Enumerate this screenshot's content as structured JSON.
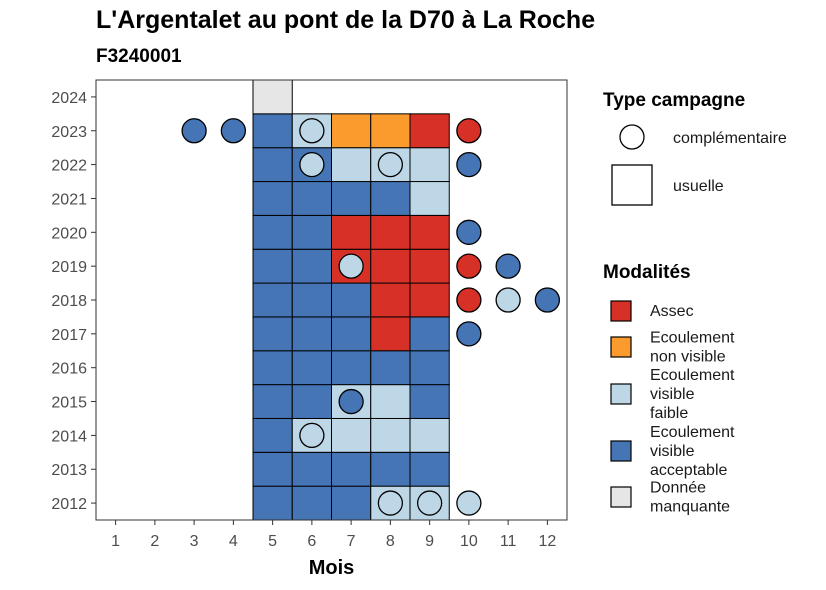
{
  "title": "L'Argentalet au pont de la D70 à La Roche",
  "subtitle": "F3240001",
  "chart_data": {
    "type": "heatmap",
    "title": "L'Argentalet au pont de la D70 à La Roche",
    "subtitle": "F3240001",
    "xlabel": "Mois",
    "ylabel": "",
    "x_ticks": [
      1,
      2,
      3,
      4,
      5,
      6,
      7,
      8,
      9,
      10,
      11,
      12
    ],
    "y_ticks": [
      2012,
      2013,
      2014,
      2015,
      2016,
      2017,
      2018,
      2019,
      2020,
      2021,
      2022,
      2023,
      2024
    ],
    "xlim": [
      0.5,
      12.5
    ],
    "ylim": [
      2011.5,
      2024.5
    ],
    "colors": {
      "Assec": "#d73027",
      "Ecoulement non visible": "#fc9b2d",
      "Ecoulement visible faible": "#bdd7e7",
      "Ecoulement visible acceptable": "#4575b4",
      "Donnée manquante": "#e6e6e6"
    },
    "usuelle": [
      {
        "year": 2012,
        "values": [
          [
            5,
            "Ecoulement visible acceptable"
          ],
          [
            6,
            "Ecoulement visible acceptable"
          ],
          [
            7,
            "Ecoulement visible acceptable"
          ],
          [
            8,
            "Ecoulement visible faible"
          ],
          [
            9,
            "Ecoulement visible faible"
          ]
        ]
      },
      {
        "year": 2013,
        "values": [
          [
            5,
            "Ecoulement visible acceptable"
          ],
          [
            6,
            "Ecoulement visible acceptable"
          ],
          [
            7,
            "Ecoulement visible acceptable"
          ],
          [
            8,
            "Ecoulement visible acceptable"
          ],
          [
            9,
            "Ecoulement visible acceptable"
          ]
        ]
      },
      {
        "year": 2014,
        "values": [
          [
            5,
            "Ecoulement visible acceptable"
          ],
          [
            6,
            "Ecoulement visible faible"
          ],
          [
            7,
            "Ecoulement visible faible"
          ],
          [
            8,
            "Ecoulement visible faible"
          ],
          [
            9,
            "Ecoulement visible faible"
          ]
        ]
      },
      {
        "year": 2015,
        "values": [
          [
            5,
            "Ecoulement visible acceptable"
          ],
          [
            6,
            "Ecoulement visible acceptable"
          ],
          [
            7,
            "Ecoulement visible faible"
          ],
          [
            8,
            "Ecoulement visible faible"
          ],
          [
            9,
            "Ecoulement visible acceptable"
          ]
        ]
      },
      {
        "year": 2016,
        "values": [
          [
            5,
            "Ecoulement visible acceptable"
          ],
          [
            6,
            "Ecoulement visible acceptable"
          ],
          [
            7,
            "Ecoulement visible acceptable"
          ],
          [
            8,
            "Ecoulement visible acceptable"
          ],
          [
            9,
            "Ecoulement visible acceptable"
          ]
        ]
      },
      {
        "year": 2017,
        "values": [
          [
            5,
            "Ecoulement visible acceptable"
          ],
          [
            6,
            "Ecoulement visible acceptable"
          ],
          [
            7,
            "Ecoulement visible acceptable"
          ],
          [
            8,
            "Assec"
          ],
          [
            9,
            "Ecoulement visible acceptable"
          ]
        ]
      },
      {
        "year": 2018,
        "values": [
          [
            5,
            "Ecoulement visible acceptable"
          ],
          [
            6,
            "Ecoulement visible acceptable"
          ],
          [
            7,
            "Ecoulement visible acceptable"
          ],
          [
            8,
            "Assec"
          ],
          [
            9,
            "Assec"
          ]
        ]
      },
      {
        "year": 2019,
        "values": [
          [
            5,
            "Ecoulement visible acceptable"
          ],
          [
            6,
            "Ecoulement visible acceptable"
          ],
          [
            7,
            "Assec"
          ],
          [
            8,
            "Assec"
          ],
          [
            9,
            "Assec"
          ]
        ]
      },
      {
        "year": 2020,
        "values": [
          [
            5,
            "Ecoulement visible acceptable"
          ],
          [
            6,
            "Ecoulement visible acceptable"
          ],
          [
            7,
            "Assec"
          ],
          [
            8,
            "Assec"
          ],
          [
            9,
            "Assec"
          ]
        ]
      },
      {
        "year": 2021,
        "values": [
          [
            5,
            "Ecoulement visible acceptable"
          ],
          [
            6,
            "Ecoulement visible acceptable"
          ],
          [
            7,
            "Ecoulement visible acceptable"
          ],
          [
            8,
            "Ecoulement visible acceptable"
          ],
          [
            9,
            "Ecoulement visible faible"
          ]
        ]
      },
      {
        "year": 2022,
        "values": [
          [
            5,
            "Ecoulement visible acceptable"
          ],
          [
            6,
            "Ecoulement visible acceptable"
          ],
          [
            7,
            "Ecoulement visible faible"
          ],
          [
            8,
            "Ecoulement visible faible"
          ],
          [
            9,
            "Ecoulement visible faible"
          ]
        ]
      },
      {
        "year": 2023,
        "values": [
          [
            5,
            "Ecoulement visible acceptable"
          ],
          [
            6,
            "Ecoulement visible faible"
          ],
          [
            7,
            "Ecoulement non visible"
          ],
          [
            8,
            "Ecoulement non visible"
          ],
          [
            9,
            "Assec"
          ]
        ]
      },
      {
        "year": 2024,
        "values": [
          [
            5,
            "Donnée manquante"
          ]
        ]
      }
    ],
    "complementaire": [
      {
        "year": 2012,
        "month": 8,
        "value": "Ecoulement visible faible"
      },
      {
        "year": 2012,
        "month": 9,
        "value": "Ecoulement visible faible"
      },
      {
        "year": 2012,
        "month": 10,
        "value": "Ecoulement visible faible"
      },
      {
        "year": 2014,
        "month": 6,
        "value": "Ecoulement visible faible"
      },
      {
        "year": 2015,
        "month": 7,
        "value": "Ecoulement visible acceptable"
      },
      {
        "year": 2017,
        "month": 10,
        "value": "Ecoulement visible acceptable"
      },
      {
        "year": 2018,
        "month": 10,
        "value": "Assec"
      },
      {
        "year": 2018,
        "month": 11,
        "value": "Ecoulement visible faible"
      },
      {
        "year": 2018,
        "month": 12,
        "value": "Ecoulement visible acceptable"
      },
      {
        "year": 2019,
        "month": 7,
        "value": "Ecoulement visible faible"
      },
      {
        "year": 2019,
        "month": 10,
        "value": "Assec"
      },
      {
        "year": 2019,
        "month": 11,
        "value": "Ecoulement visible acceptable"
      },
      {
        "year": 2020,
        "month": 10,
        "value": "Ecoulement visible acceptable"
      },
      {
        "year": 2022,
        "month": 6,
        "value": "Ecoulement visible faible"
      },
      {
        "year": 2022,
        "month": 8,
        "value": "Ecoulement visible faible"
      },
      {
        "year": 2022,
        "month": 10,
        "value": "Ecoulement visible acceptable"
      },
      {
        "year": 2023,
        "month": 3,
        "value": "Ecoulement visible acceptable"
      },
      {
        "year": 2023,
        "month": 4,
        "value": "Ecoulement visible acceptable"
      },
      {
        "year": 2023,
        "month": 6,
        "value": "Ecoulement visible faible"
      },
      {
        "year": 2023,
        "month": 10,
        "value": "Assec"
      }
    ],
    "legend": {
      "placement": "right",
      "type_title": "Type campagne",
      "type_items": [
        {
          "label": "complémentaire",
          "shape": "circle"
        },
        {
          "label": "usuelle",
          "shape": "square"
        }
      ],
      "modalites_title": "Modalités",
      "modalites_items": [
        {
          "key": "Assec",
          "lines": [
            "Assec"
          ]
        },
        {
          "key": "Ecoulement non visible",
          "lines": [
            "Ecoulement",
            "non visible"
          ]
        },
        {
          "key": "Ecoulement visible faible",
          "lines": [
            "Ecoulement",
            "visible",
            "faible"
          ]
        },
        {
          "key": "Ecoulement visible acceptable",
          "lines": [
            "Ecoulement",
            "visible",
            "acceptable"
          ]
        },
        {
          "key": "Donnée manquante",
          "lines": [
            "Donnée",
            "manquante"
          ]
        }
      ]
    },
    "grid": false
  }
}
